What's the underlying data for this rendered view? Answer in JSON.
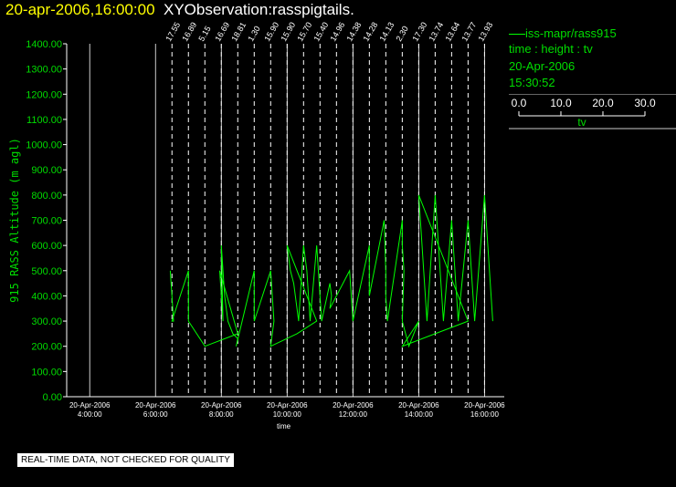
{
  "header": {
    "timestamp": "20-apr-2006,16:00:00",
    "title": "XYObservation:rasspigtails."
  },
  "legend": {
    "series_label": "iss-mapr/rass915",
    "axes_desc": "time : height : tv",
    "date": "20-Apr-2006",
    "time": "15:30:52",
    "scale_ticks": [
      "0.0",
      "10.0",
      "20.0",
      "30.0"
    ],
    "scale_values": [
      0,
      10,
      20,
      30
    ],
    "scale_label": "tv"
  },
  "notice": "REAL-TIME DATA, NOT CHECKED FOR QUALITY",
  "colors": {
    "axis": "#ffffff",
    "series": "#00ff00",
    "label": "#00dd00",
    "timestamp": "#ffff00",
    "background": "#000000"
  },
  "chart_data": {
    "type": "line",
    "xlabel": "time",
    "ylabel": "915 RASS Altitude (m agl)",
    "xlim_hours": [
      3.3,
      16.6
    ],
    "ylim": [
      0,
      1400
    ],
    "yticks": [
      "0.00",
      "100.00",
      "200.00",
      "300.00",
      "400.00",
      "500.00",
      "600.00",
      "700.00",
      "800.00",
      "900.00",
      "1000.00",
      "1100.00",
      "1200.00",
      "1300.00",
      "1400.00"
    ],
    "xticks": [
      {
        "hour": 4,
        "date": "20-Apr-2006",
        "time": "4:00:00"
      },
      {
        "hour": 6,
        "date": "20-Apr-2006",
        "time": "6:00:00"
      },
      {
        "hour": 8,
        "date": "20-Apr-2006",
        "time": "8:00:00"
      },
      {
        "hour": 10,
        "date": "20-Apr-2006",
        "time": "10:00:00"
      },
      {
        "hour": 12,
        "date": "20-Apr-2006",
        "time": "12:00:00"
      },
      {
        "hour": 14,
        "date": "20-Apr-2006",
        "time": "14:00:00"
      },
      {
        "hour": 16,
        "date": "20-Apr-2006",
        "time": "16:00:00"
      }
    ],
    "profiles": [
      {
        "hour": 6.5,
        "label": "17.55"
      },
      {
        "hour": 7.0,
        "label": "16.89"
      },
      {
        "hour": 7.5,
        "label": "5.15"
      },
      {
        "hour": 8.0,
        "label": "16.69"
      },
      {
        "hour": 8.5,
        "label": "18.81"
      },
      {
        "hour": 9.0,
        "label": "1.30"
      },
      {
        "hour": 9.5,
        "label": "15.90"
      },
      {
        "hour": 10.0,
        "label": "15.90"
      },
      {
        "hour": 10.5,
        "label": "15.70"
      },
      {
        "hour": 11.0,
        "label": "15.40"
      },
      {
        "hour": 11.5,
        "label": "14.96"
      },
      {
        "hour": 12.0,
        "label": "14.38"
      },
      {
        "hour": 12.5,
        "label": "14.28"
      },
      {
        "hour": 13.0,
        "label": "14.13"
      },
      {
        "hour": 13.5,
        "label": "2.30"
      },
      {
        "hour": 14.0,
        "label": "17.30"
      },
      {
        "hour": 14.5,
        "label": "13.74"
      },
      {
        "hour": 15.0,
        "label": "13.64"
      },
      {
        "hour": 15.5,
        "label": "13.77"
      },
      {
        "hour": 16.0,
        "label": "13.93"
      }
    ],
    "trace_points": [
      [
        6.45,
        500
      ],
      [
        6.5,
        400
      ],
      [
        6.55,
        300
      ],
      [
        6.5,
        300
      ],
      [
        7.0,
        500
      ],
      [
        7.0,
        400
      ],
      [
        7.0,
        300
      ],
      [
        7.5,
        200
      ],
      [
        8.5,
        250
      ],
      [
        7.95,
        500
      ],
      [
        8.0,
        400
      ],
      [
        8.05,
        300
      ],
      [
        8.0,
        600
      ],
      [
        8.1,
        400
      ],
      [
        8.2,
        300
      ],
      [
        8.35,
        250
      ],
      [
        8.5,
        230
      ],
      [
        8.45,
        200
      ],
      [
        9.0,
        500
      ],
      [
        9.0,
        400
      ],
      [
        9.0,
        300
      ],
      [
        9.5,
        500
      ],
      [
        9.55,
        400
      ],
      [
        9.6,
        300
      ],
      [
        9.5,
        200
      ],
      [
        10.3,
        250
      ],
      [
        10.9,
        300
      ],
      [
        10.0,
        600
      ],
      [
        10.1,
        500
      ],
      [
        10.2,
        450
      ],
      [
        10.25,
        400
      ],
      [
        10.35,
        300
      ],
      [
        10.5,
        600
      ],
      [
        10.6,
        500
      ],
      [
        10.65,
        400
      ],
      [
        10.7,
        300
      ],
      [
        10.9,
        600
      ],
      [
        10.95,
        500
      ],
      [
        11.0,
        400
      ],
      [
        11.05,
        300
      ],
      [
        11.3,
        450
      ],
      [
        11.35,
        400
      ],
      [
        11.3,
        350
      ],
      [
        11.9,
        500
      ],
      [
        11.95,
        400
      ],
      [
        12.0,
        300
      ],
      [
        12.5,
        600
      ],
      [
        12.5,
        500
      ],
      [
        12.5,
        400
      ],
      [
        12.95,
        700
      ],
      [
        13.0,
        500
      ],
      [
        13.0,
        400
      ],
      [
        13.05,
        300
      ],
      [
        13.5,
        700
      ],
      [
        13.5,
        600
      ],
      [
        13.55,
        500
      ],
      [
        13.5,
        300
      ],
      [
        13.7,
        200
      ],
      [
        14.0,
        300
      ],
      [
        13.5,
        200
      ],
      [
        14.5,
        250
      ],
      [
        15.5,
        300
      ],
      [
        14.0,
        800
      ],
      [
        14.05,
        700
      ],
      [
        14.1,
        600
      ],
      [
        14.15,
        500
      ],
      [
        14.2,
        400
      ],
      [
        14.25,
        300
      ],
      [
        14.5,
        800
      ],
      [
        14.55,
        700
      ],
      [
        14.6,
        600
      ],
      [
        14.65,
        500
      ],
      [
        14.7,
        400
      ],
      [
        14.75,
        300
      ],
      [
        15.0,
        700
      ],
      [
        15.05,
        600
      ],
      [
        15.1,
        500
      ],
      [
        15.15,
        400
      ],
      [
        15.2,
        300
      ],
      [
        15.5,
        700
      ],
      [
        15.55,
        600
      ],
      [
        15.6,
        500
      ],
      [
        15.65,
        400
      ],
      [
        15.7,
        300
      ],
      [
        16.0,
        800
      ],
      [
        16.05,
        700
      ],
      [
        16.1,
        600
      ],
      [
        16.15,
        500
      ],
      [
        16.2,
        400
      ],
      [
        16.25,
        300
      ]
    ]
  }
}
